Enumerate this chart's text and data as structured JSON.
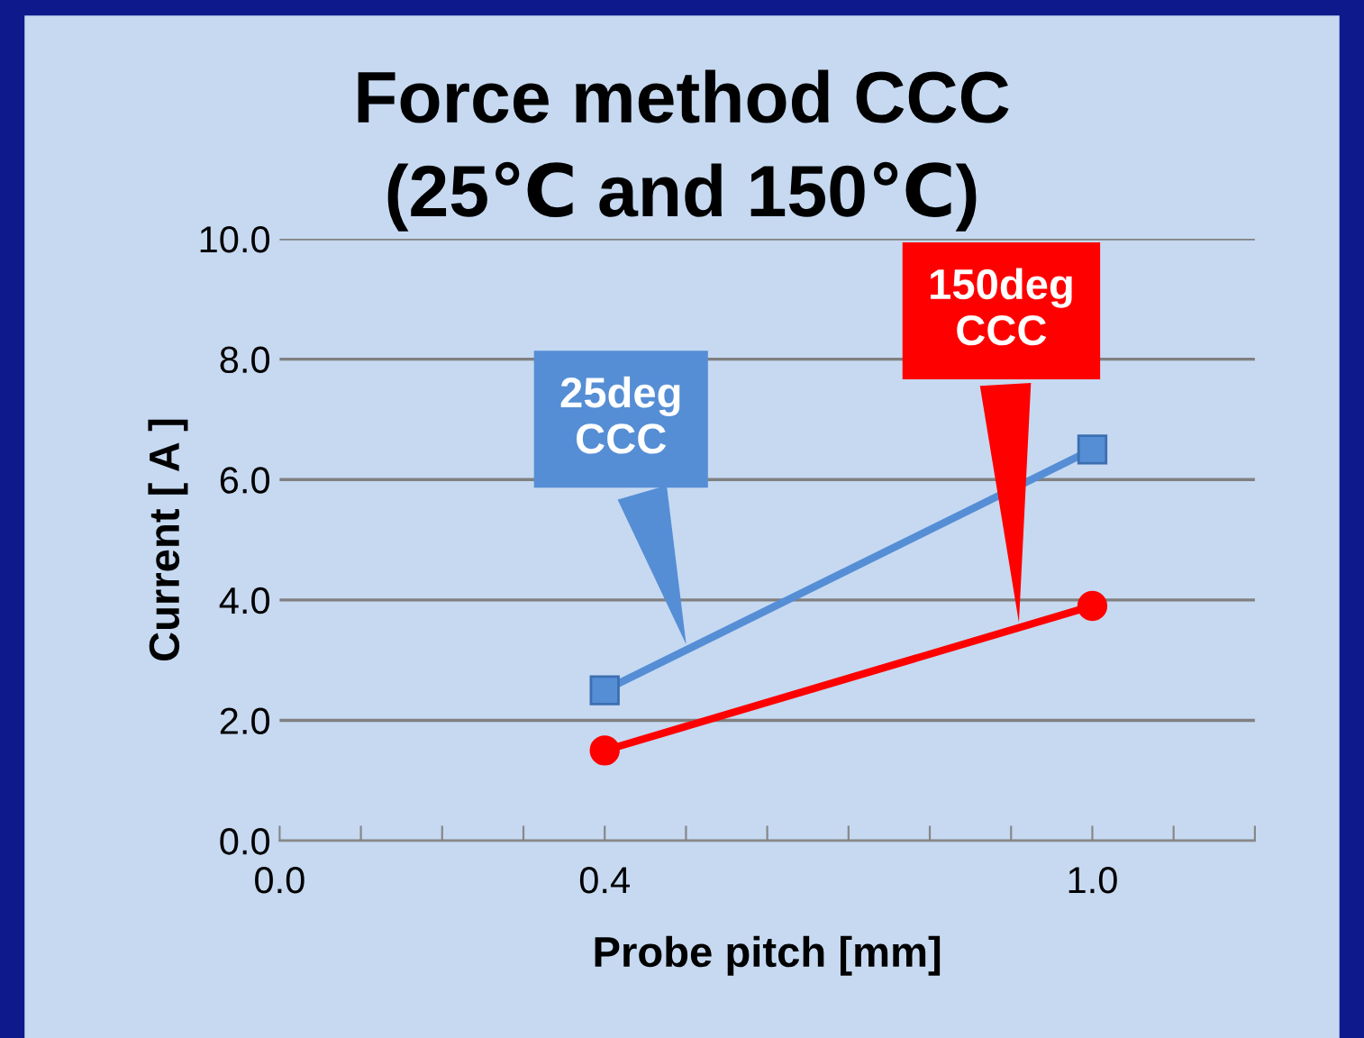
{
  "chart_data": {
    "type": "line",
    "title": "Force method CCC\n(25℃ and 150℃)",
    "xlabel": "Probe pitch [mm]",
    "ylabel": "Current [ A ]",
    "x": [
      0.4,
      1.0
    ],
    "series": [
      {
        "name": "25deg\nCCC",
        "color": "#558ed5",
        "values": [
          2.5,
          6.5
        ],
        "marker": "square"
      },
      {
        "name": "150deg\nCCC",
        "color": "#ff0000",
        "values": [
          1.5,
          3.9
        ],
        "marker": "circle"
      }
    ],
    "xlim": [
      0,
      1.2
    ],
    "xticks": [
      {
        "value": 0.0,
        "label": "0.0"
      },
      {
        "value": 0.1,
        "label": null
      },
      {
        "value": 0.2,
        "label": null
      },
      {
        "value": 0.3,
        "label": null
      },
      {
        "value": 0.4,
        "label": "0.4"
      },
      {
        "value": 0.5,
        "label": null
      },
      {
        "value": 0.6,
        "label": null
      },
      {
        "value": 0.7,
        "label": null
      },
      {
        "value": 0.8,
        "label": null
      },
      {
        "value": 0.9,
        "label": null
      },
      {
        "value": 1.0,
        "label": "1.0"
      },
      {
        "value": 1.1,
        "label": null
      },
      {
        "value": 1.2,
        "label": null
      }
    ],
    "ylim": [
      0,
      10
    ],
    "yticks": [
      {
        "value": 0,
        "label": "0.0"
      },
      {
        "value": 2,
        "label": "2.0"
      },
      {
        "value": 4,
        "label": "4.0"
      },
      {
        "value": 6,
        "label": "6.0"
      },
      {
        "value": 8,
        "label": "8.0"
      },
      {
        "value": 10,
        "label": "10.0"
      }
    ],
    "grid": "y",
    "legend": false,
    "line_style": "solid"
  }
}
